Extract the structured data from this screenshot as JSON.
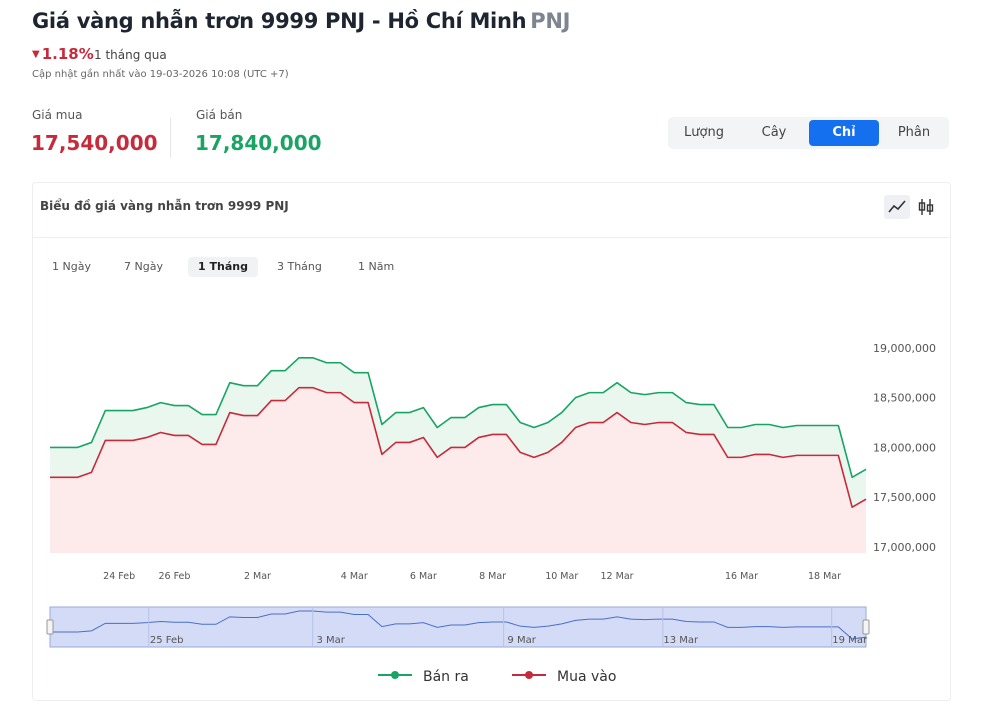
{
  "header": {
    "title": "Giá vàng nhẫn trơn 9999 PNJ - Hồ Chí Minh",
    "brand": "PNJ",
    "change": "1.18%",
    "change_period": "1 tháng qua",
    "updated": "Cập nhật gần nhất vào 19-03-2026 10:08 (UTC +7)"
  },
  "prices": {
    "buy_label": "Giá mua",
    "buy": "17,540,000",
    "sell_label": "Giá bán",
    "sell": "17,840,000"
  },
  "units": [
    "Lượng",
    "Cây",
    "Chỉ",
    "Phân"
  ],
  "card_title": "Biểu đồ giá vàng nhẫn trơn 9999 PNJ",
  "ranges": [
    "1 Ngày",
    "7 Ngày",
    "1 Tháng",
    "3 Tháng",
    "1 Năm"
  ],
  "chart_data": {
    "type": "line",
    "categories": [
      null,
      null,
      null,
      null,
      null,
      "24 Feb",
      null,
      null,
      null,
      "26 Feb",
      null,
      null,
      null,
      null,
      null,
      "2 Mar",
      null,
      null,
      null,
      null,
      null,
      null,
      "4 Mar",
      null,
      null,
      null,
      null,
      "6 Mar",
      null,
      null,
      null,
      null,
      "8 Mar",
      null,
      null,
      null,
      null,
      "10 Mar",
      null,
      null,
      null,
      "12 Mar",
      null,
      null,
      null,
      null,
      null,
      null,
      null,
      null,
      "16 Mar",
      null,
      null,
      null,
      null,
      null,
      "18 Mar",
      null,
      null,
      null
    ],
    "series": [
      {
        "name": "Bán ra",
        "color": "#19a463",
        "fill": "#e9f7ef",
        "values": [
          18000000,
          18000000,
          18000000,
          18050000,
          18370000,
          18370000,
          18370000,
          18400000,
          18450000,
          18420000,
          18420000,
          18330000,
          18330000,
          18650000,
          18620000,
          18620000,
          18770000,
          18770000,
          18900000,
          18900000,
          18850000,
          18850000,
          18750000,
          18750000,
          18230000,
          18350000,
          18350000,
          18400000,
          18200000,
          18300000,
          18300000,
          18400000,
          18430000,
          18430000,
          18250000,
          18200000,
          18250000,
          18350000,
          18500000,
          18550000,
          18550000,
          18650000,
          18550000,
          18530000,
          18550000,
          18550000,
          18450000,
          18430000,
          18430000,
          18200000,
          18200000,
          18230000,
          18230000,
          18200000,
          18220000,
          18220000,
          18220000,
          18220000,
          17700000,
          17780000
        ]
      },
      {
        "name": "Mua vào",
        "color": "#c62b3c",
        "fill": "#fdeaea",
        "values": [
          17700000,
          17700000,
          17700000,
          17750000,
          18070000,
          18070000,
          18070000,
          18100000,
          18150000,
          18120000,
          18120000,
          18030000,
          18030000,
          18350000,
          18320000,
          18320000,
          18470000,
          18470000,
          18600000,
          18600000,
          18550000,
          18550000,
          18450000,
          18450000,
          17930000,
          18050000,
          18050000,
          18100000,
          17900000,
          18000000,
          18000000,
          18100000,
          18130000,
          18130000,
          17950000,
          17900000,
          17950000,
          18050000,
          18200000,
          18250000,
          18250000,
          18350000,
          18250000,
          18230000,
          18250000,
          18250000,
          18150000,
          18130000,
          18130000,
          17900000,
          17900000,
          17930000,
          17930000,
          17900000,
          17920000,
          17920000,
          17920000,
          17920000,
          17400000,
          17480000
        ]
      }
    ],
    "ylim": [
      16940000,
      19480000
    ],
    "yticks": [
      {
        "value": 17000000,
        "label": "17,000,000"
      },
      {
        "value": 17500000,
        "label": "17,500,000"
      },
      {
        "value": 18000000,
        "label": "18,000,000"
      },
      {
        "value": 18500000,
        "label": "18,500,000"
      },
      {
        "value": 19000000,
        "label": "19,000,000"
      }
    ],
    "grid": false,
    "navigator_labels": [
      "25 Feb",
      "3 Mar",
      "9 Mar",
      "13 Mar",
      "19 Mar"
    ]
  }
}
